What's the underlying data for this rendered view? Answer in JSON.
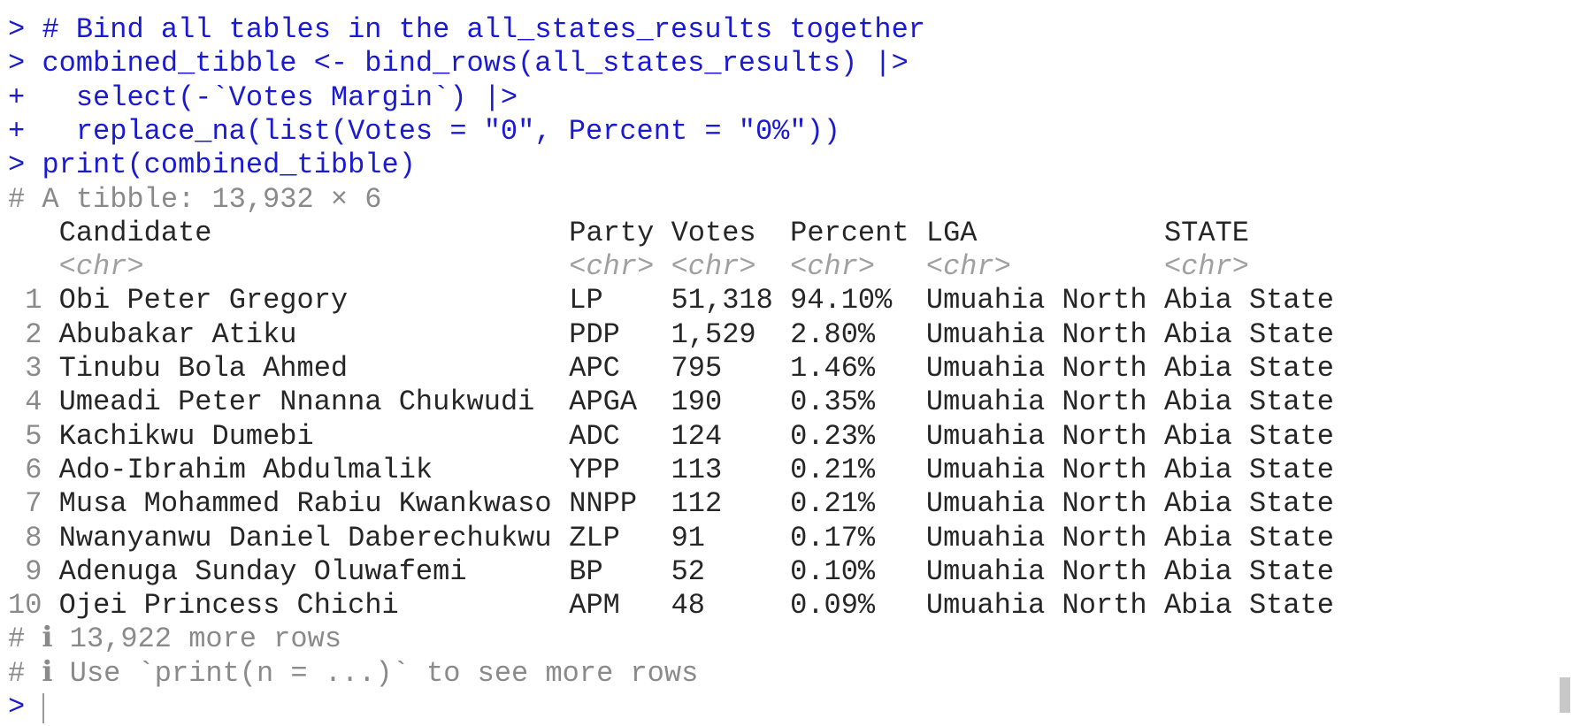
{
  "console": {
    "commands": [
      {
        "prompt": ">",
        "code": "# Bind all tables in the all_states_results together"
      },
      {
        "prompt": ">",
        "code": "combined_tibble <- bind_rows(all_states_results) |>"
      },
      {
        "prompt": "+",
        "code": "  select(-`Votes Margin`) |>"
      },
      {
        "prompt": "+",
        "code": "  replace_na(list(Votes = \"0\", Percent = \"0%\"))"
      },
      {
        "prompt": ">",
        "code": "print(combined_tibble)"
      }
    ],
    "output": {
      "summary": "# A tibble: 13,932 × 6",
      "columns": [
        "Candidate",
        "Party",
        "Votes",
        "Percent",
        "LGA",
        "STATE"
      ],
      "types": [
        "<chr>",
        "<chr>",
        "<chr>",
        "<chr>",
        "<chr>",
        "<chr>"
      ],
      "rows": [
        {
          "n": "1",
          "cells": [
            "Obi Peter Gregory",
            "LP",
            "51,318",
            "94.10%",
            "Umuahia North",
            "Abia State"
          ]
        },
        {
          "n": "2",
          "cells": [
            "Abubakar Atiku",
            "PDP",
            "1,529",
            "2.80%",
            "Umuahia North",
            "Abia State"
          ]
        },
        {
          "n": "3",
          "cells": [
            "Tinubu Bola Ahmed",
            "APC",
            "795",
            "1.46%",
            "Umuahia North",
            "Abia State"
          ]
        },
        {
          "n": "4",
          "cells": [
            "Umeadi Peter Nnanna Chukwudi",
            "APGA",
            "190",
            "0.35%",
            "Umuahia North",
            "Abia State"
          ]
        },
        {
          "n": "5",
          "cells": [
            "Kachikwu Dumebi",
            "ADC",
            "124",
            "0.23%",
            "Umuahia North",
            "Abia State"
          ]
        },
        {
          "n": "6",
          "cells": [
            "Ado-Ibrahim Abdulmalik",
            "YPP",
            "113",
            "0.21%",
            "Umuahia North",
            "Abia State"
          ]
        },
        {
          "n": "7",
          "cells": [
            "Musa Mohammed Rabiu Kwankwaso",
            "NNPP",
            "112",
            "0.21%",
            "Umuahia North",
            "Abia State"
          ]
        },
        {
          "n": "8",
          "cells": [
            "Nwanyanwu Daniel Daberechukwu",
            "ZLP",
            "91",
            "0.17%",
            "Umuahia North",
            "Abia State"
          ]
        },
        {
          "n": "9",
          "cells": [
            "Adenuga Sunday Oluwafemi",
            "BP",
            "52",
            "0.10%",
            "Umuahia North",
            "Abia State"
          ]
        },
        {
          "n": "10",
          "cells": [
            "Ojei Princess Chichi",
            "APM",
            "48",
            "0.09%",
            "Umuahia North",
            "Abia State"
          ]
        }
      ],
      "footer": [
        "# ℹ 13,922 more rows",
        "# ℹ Use `print(n = ...)` to see more rows"
      ]
    },
    "prompt": ">"
  }
}
